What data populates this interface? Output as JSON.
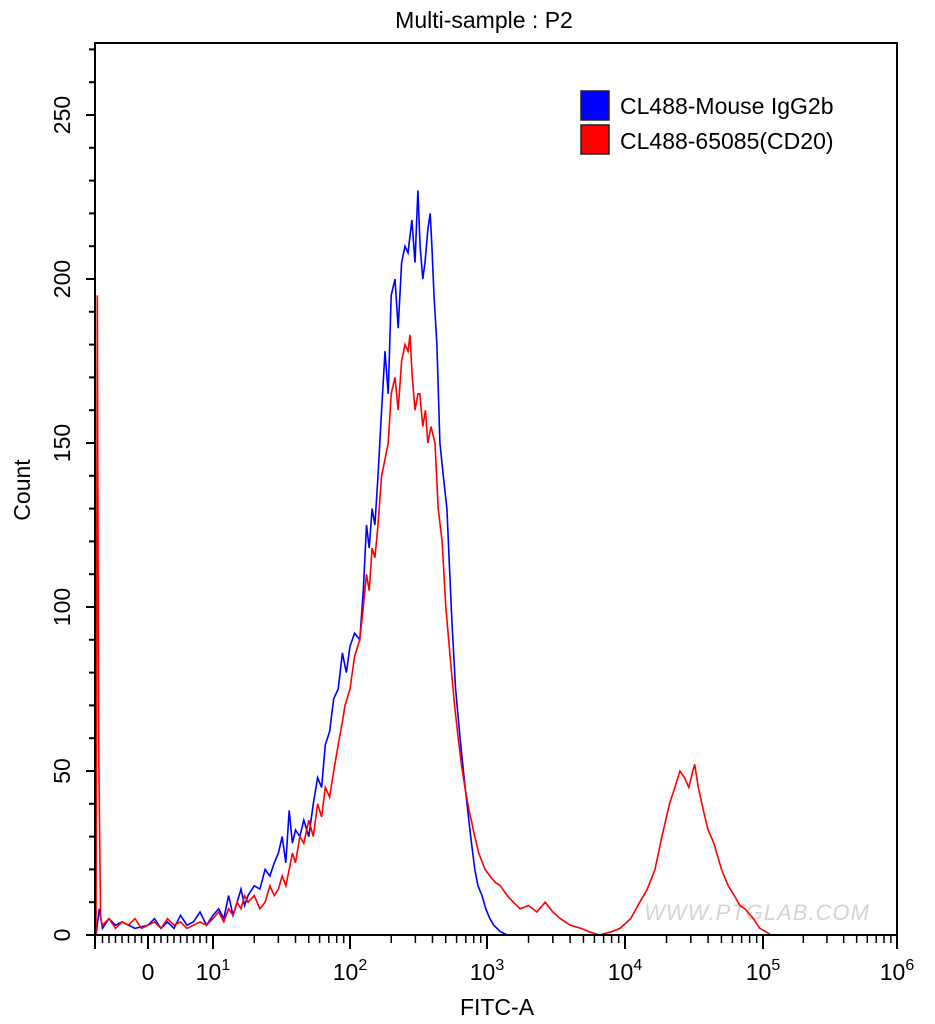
{
  "chart_data": {
    "type": "line",
    "title": "Multi-sample : P2",
    "xlabel": "FITC-A",
    "ylabel": "Count",
    "x_scale": "biexponential",
    "xlim": [
      -8,
      1000000
    ],
    "ylim": [
      0,
      272
    ],
    "x_ticks": [
      {
        "value": 0,
        "label": "0",
        "exp": ""
      },
      {
        "value": 10,
        "label": "10",
        "exp": "1"
      },
      {
        "value": 100,
        "label": "10",
        "exp": "2"
      },
      {
        "value": 1000,
        "label": "10",
        "exp": "3"
      },
      {
        "value": 10000,
        "label": "10",
        "exp": "4"
      },
      {
        "value": 100000,
        "label": "10",
        "exp": "5"
      },
      {
        "value": 1000000,
        "label": "10",
        "exp": "6"
      }
    ],
    "y_ticks": [
      0,
      50,
      100,
      150,
      200,
      250
    ],
    "grid": false,
    "legend_position": "top-right",
    "watermark": "WWW.PTGLAB.COM",
    "series": [
      {
        "name": "CL488-Mouse IgG2b",
        "color": "#0000ff",
        "points": [
          [
            -8,
            0
          ],
          [
            -7.5,
            8
          ],
          [
            -7,
            2
          ],
          [
            -6,
            5
          ],
          [
            -5,
            3
          ],
          [
            -4,
            4
          ],
          [
            -2,
            2
          ],
          [
            0,
            3
          ],
          [
            1,
            5
          ],
          [
            2,
            2
          ],
          [
            3,
            4
          ],
          [
            4,
            2
          ],
          [
            5,
            6
          ],
          [
            6,
            3
          ],
          [
            7,
            4
          ],
          [
            8,
            7
          ],
          [
            9,
            3
          ],
          [
            10,
            6
          ],
          [
            11,
            8
          ],
          [
            12,
            5
          ],
          [
            13,
            12
          ],
          [
            14,
            6
          ],
          [
            15,
            10
          ],
          [
            16,
            14
          ],
          [
            17,
            9
          ],
          [
            18,
            12
          ],
          [
            20,
            15
          ],
          [
            22,
            14
          ],
          [
            24,
            20
          ],
          [
            26,
            18
          ],
          [
            28,
            22
          ],
          [
            30,
            25
          ],
          [
            32,
            30
          ],
          [
            34,
            22
          ],
          [
            36,
            38
          ],
          [
            38,
            28
          ],
          [
            40,
            32
          ],
          [
            43,
            30
          ],
          [
            46,
            35
          ],
          [
            50,
            30
          ],
          [
            54,
            40
          ],
          [
            58,
            48
          ],
          [
            62,
            45
          ],
          [
            66,
            58
          ],
          [
            71,
            62
          ],
          [
            76,
            72
          ],
          [
            82,
            75
          ],
          [
            88,
            86
          ],
          [
            94,
            80
          ],
          [
            100,
            88
          ],
          [
            108,
            92
          ],
          [
            118,
            90
          ],
          [
            125,
            105
          ],
          [
            132,
            125
          ],
          [
            138,
            118
          ],
          [
            145,
            130
          ],
          [
            152,
            125
          ],
          [
            160,
            140
          ],
          [
            170,
            160
          ],
          [
            180,
            178
          ],
          [
            190,
            165
          ],
          [
            200,
            195
          ],
          [
            213,
            200
          ],
          [
            225,
            185
          ],
          [
            238,
            205
          ],
          [
            252,
            210
          ],
          [
            265,
            208
          ],
          [
            283,
            218
          ],
          [
            298,
            205
          ],
          [
            313,
            227
          ],
          [
            325,
            210
          ],
          [
            340,
            200
          ],
          [
            353,
            205
          ],
          [
            370,
            215
          ],
          [
            385,
            220
          ],
          [
            396,
            210
          ],
          [
            410,
            195
          ],
          [
            431,
            180
          ],
          [
            453,
            150
          ],
          [
            480,
            140
          ],
          [
            510,
            130
          ],
          [
            535,
            110
          ],
          [
            555,
            95
          ],
          [
            590,
            75
          ],
          [
            636,
            60
          ],
          [
            680,
            48
          ],
          [
            714,
            40
          ],
          [
            760,
            30
          ],
          [
            815,
            20
          ],
          [
            860,
            15
          ],
          [
            920,
            12
          ],
          [
            980,
            8
          ],
          [
            1050,
            5
          ],
          [
            1120,
            3
          ],
          [
            1250,
            1
          ],
          [
            1400,
            0
          ]
        ]
      },
      {
        "name": "CL488-65085(CD20)",
        "color": "#ff0000",
        "points": [
          [
            -8,
            0
          ],
          [
            -7.8,
            195
          ],
          [
            -7.6,
            60
          ],
          [
            -7.3,
            5
          ],
          [
            -7,
            3
          ],
          [
            -6,
            5
          ],
          [
            -5,
            2
          ],
          [
            -4,
            4
          ],
          [
            -3,
            3
          ],
          [
            -2,
            5
          ],
          [
            -1,
            2
          ],
          [
            0,
            3
          ],
          [
            1,
            4
          ],
          [
            2,
            2
          ],
          [
            3,
            5
          ],
          [
            4,
            3
          ],
          [
            5,
            4
          ],
          [
            6,
            2
          ],
          [
            7,
            3
          ],
          [
            8,
            4
          ],
          [
            9,
            3
          ],
          [
            10,
            5
          ],
          [
            11,
            7
          ],
          [
            12,
            4
          ],
          [
            13,
            8
          ],
          [
            14,
            6
          ],
          [
            15,
            10
          ],
          [
            16,
            8
          ],
          [
            17,
            12
          ],
          [
            18,
            10
          ],
          [
            20,
            12
          ],
          [
            22,
            8
          ],
          [
            24,
            10
          ],
          [
            26,
            15
          ],
          [
            28,
            12
          ],
          [
            30,
            14
          ],
          [
            32,
            18
          ],
          [
            34,
            15
          ],
          [
            36,
            20
          ],
          [
            38,
            25
          ],
          [
            40,
            22
          ],
          [
            43,
            30
          ],
          [
            46,
            28
          ],
          [
            50,
            35
          ],
          [
            54,
            30
          ],
          [
            58,
            40
          ],
          [
            62,
            36
          ],
          [
            66,
            45
          ],
          [
            71,
            42
          ],
          [
            76,
            50
          ],
          [
            82,
            58
          ],
          [
            88,
            65
          ],
          [
            92,
            70
          ],
          [
            100,
            75
          ],
          [
            108,
            85
          ],
          [
            118,
            90
          ],
          [
            125,
            100
          ],
          [
            132,
            110
          ],
          [
            138,
            105
          ],
          [
            145,
            118
          ],
          [
            152,
            115
          ],
          [
            160,
            125
          ],
          [
            170,
            140
          ],
          [
            180,
            145
          ],
          [
            190,
            150
          ],
          [
            200,
            165
          ],
          [
            213,
            170
          ],
          [
            225,
            160
          ],
          [
            238,
            175
          ],
          [
            252,
            180
          ],
          [
            265,
            178
          ],
          [
            274,
            183
          ],
          [
            285,
            170
          ],
          [
            298,
            160
          ],
          [
            313,
            165
          ],
          [
            323,
            165
          ],
          [
            340,
            155
          ],
          [
            355,
            160
          ],
          [
            370,
            150
          ],
          [
            390,
            155
          ],
          [
            417,
            150
          ],
          [
            440,
            130
          ],
          [
            470,
            120
          ],
          [
            500,
            100
          ],
          [
            538,
            85
          ],
          [
            580,
            70
          ],
          [
            616,
            60
          ],
          [
            650,
            52
          ],
          [
            690,
            45
          ],
          [
            740,
            38
          ],
          [
            815,
            30
          ],
          [
            870,
            25
          ],
          [
            967,
            20
          ],
          [
            1050,
            18
          ],
          [
            1150,
            16
          ],
          [
            1250,
            15
          ],
          [
            1400,
            12
          ],
          [
            1550,
            10
          ],
          [
            1740,
            8
          ],
          [
            2000,
            9
          ],
          [
            2300,
            7
          ],
          [
            2640,
            10
          ],
          [
            3000,
            7
          ],
          [
            3400,
            5
          ],
          [
            4000,
            3
          ],
          [
            4800,
            2
          ],
          [
            5500,
            1
          ],
          [
            6500,
            0
          ],
          [
            8000,
            1
          ],
          [
            9200,
            2
          ],
          [
            11000,
            5
          ],
          [
            12800,
            10
          ],
          [
            14500,
            14
          ],
          [
            16500,
            20
          ],
          [
            18500,
            30
          ],
          [
            21000,
            40
          ],
          [
            23000,
            45
          ],
          [
            25000,
            50
          ],
          [
            27000,
            48
          ],
          [
            29000,
            45
          ],
          [
            31000,
            50
          ],
          [
            32000,
            52
          ],
          [
            34000,
            45
          ],
          [
            37000,
            38
          ],
          [
            40000,
            32
          ],
          [
            44000,
            28
          ],
          [
            50000,
            20
          ],
          [
            56000,
            15
          ],
          [
            62000,
            12
          ],
          [
            68000,
            9
          ],
          [
            74000,
            8
          ],
          [
            85000,
            5
          ],
          [
            95000,
            2
          ],
          [
            105000,
            1
          ],
          [
            115000,
            0
          ]
        ]
      }
    ]
  }
}
